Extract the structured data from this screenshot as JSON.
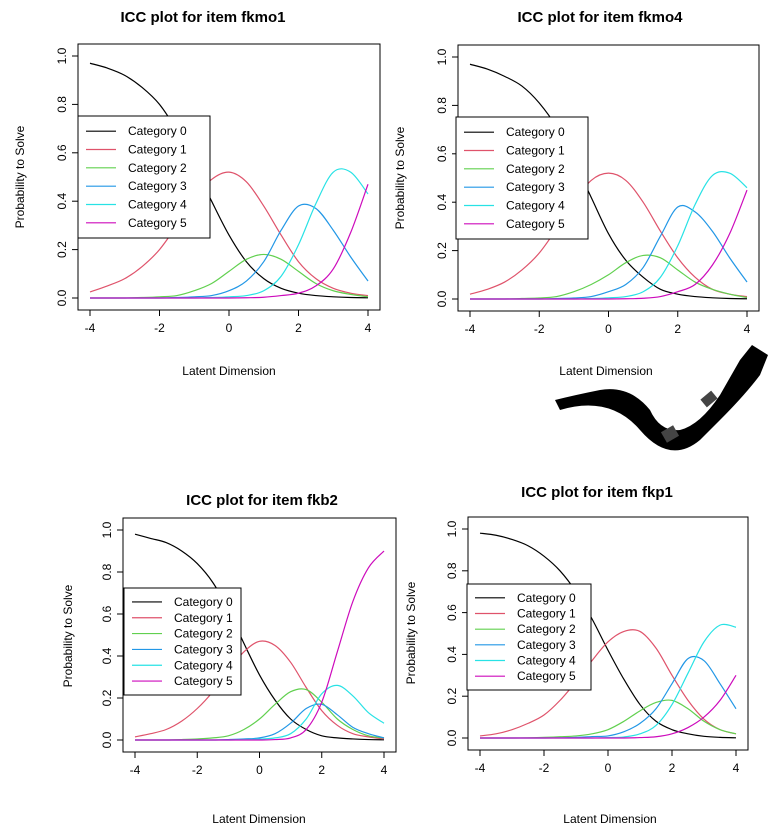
{
  "chart_data": [
    {
      "type": "line",
      "title": "ICC plot for item fkmo1",
      "xlabel": "Latent Dimension",
      "ylabel": "Probability to Solve",
      "xlim": [
        -4,
        4
      ],
      "ylim": [
        0,
        1
      ],
      "xticks": [
        "-4",
        "-2",
        "0",
        "2",
        "4"
      ],
      "yticks": [
        "0.0",
        "0.2",
        "0.4",
        "0.6",
        "0.8",
        "1.0"
      ],
      "legend_position": "left",
      "x": [
        -4,
        -3.5,
        -3,
        -2.5,
        -2,
        -1.5,
        -1,
        -0.5,
        0,
        0.5,
        1,
        1.5,
        2,
        2.5,
        3,
        3.5,
        4
      ],
      "series": [
        {
          "name": "Category 0",
          "color": "#000000",
          "values": [
            0.97,
            0.95,
            0.92,
            0.87,
            0.8,
            0.69,
            0.55,
            0.4,
            0.26,
            0.15,
            0.08,
            0.04,
            0.02,
            0.01,
            0.005,
            0.002,
            0.001
          ]
        },
        {
          "name": "Category 1",
          "color": "#DF536B",
          "values": [
            0.025,
            0.05,
            0.08,
            0.13,
            0.2,
            0.3,
            0.41,
            0.49,
            0.52,
            0.48,
            0.38,
            0.26,
            0.15,
            0.08,
            0.04,
            0.02,
            0.01
          ]
        },
        {
          "name": "Category 2",
          "color": "#61D04F",
          "values": [
            0.0,
            0.0,
            0.0,
            0.002,
            0.005,
            0.01,
            0.03,
            0.06,
            0.11,
            0.16,
            0.18,
            0.16,
            0.11,
            0.06,
            0.03,
            0.015,
            0.005
          ]
        },
        {
          "name": "Category 3",
          "color": "#2297E6",
          "values": [
            0.0,
            0.0,
            0.0,
            0.0,
            0.0,
            0.002,
            0.005,
            0.01,
            0.03,
            0.07,
            0.15,
            0.28,
            0.38,
            0.37,
            0.28,
            0.17,
            0.07
          ]
        },
        {
          "name": "Category 4",
          "color": "#28E2E5",
          "values": [
            0.0,
            0.0,
            0.0,
            0.0,
            0.0,
            0.0,
            0.0,
            0.002,
            0.005,
            0.01,
            0.03,
            0.09,
            0.22,
            0.39,
            0.52,
            0.52,
            0.43
          ]
        },
        {
          "name": "Category 5",
          "color": "#CD0BBC",
          "values": [
            0.0,
            0.0,
            0.0,
            0.0,
            0.0,
            0.0,
            0.0,
            0.0,
            0.0,
            0.001,
            0.003,
            0.01,
            0.02,
            0.05,
            0.12,
            0.27,
            0.47
          ]
        }
      ]
    },
    {
      "type": "line",
      "title": "ICC plot for item fkmo4",
      "xlabel": "Latent Dimension",
      "ylabel": "Probability to Solve",
      "xlim": [
        -4,
        4
      ],
      "ylim": [
        0,
        1
      ],
      "xticks": [
        "-4",
        "-2",
        "0",
        "2",
        "4"
      ],
      "yticks": [
        "0.0",
        "0.2",
        "0.4",
        "0.6",
        "0.8",
        "1.0"
      ],
      "legend_position": "left",
      "x": [
        -4,
        -3.5,
        -3,
        -2.5,
        -2,
        -1.5,
        -1,
        -0.5,
        0,
        0.5,
        1,
        1.5,
        2,
        2.5,
        3,
        3.5,
        4
      ],
      "series": [
        {
          "name": "Category 0",
          "color": "#000000",
          "values": [
            0.97,
            0.95,
            0.92,
            0.88,
            0.81,
            0.71,
            0.57,
            0.42,
            0.27,
            0.16,
            0.09,
            0.04,
            0.02,
            0.01,
            0.005,
            0.002,
            0.001
          ]
        },
        {
          "name": "Category 1",
          "color": "#DF536B",
          "values": [
            0.02,
            0.04,
            0.07,
            0.12,
            0.19,
            0.29,
            0.4,
            0.49,
            0.52,
            0.49,
            0.4,
            0.28,
            0.17,
            0.09,
            0.04,
            0.02,
            0.01
          ]
        },
        {
          "name": "Category 2",
          "color": "#61D04F",
          "values": [
            0.0,
            0.0,
            0.0,
            0.002,
            0.004,
            0.01,
            0.03,
            0.06,
            0.1,
            0.15,
            0.18,
            0.17,
            0.12,
            0.07,
            0.04,
            0.02,
            0.006
          ]
        },
        {
          "name": "Category 3",
          "color": "#2297E6",
          "values": [
            0.0,
            0.0,
            0.0,
            0.0,
            0.0,
            0.002,
            0.004,
            0.01,
            0.03,
            0.06,
            0.13,
            0.26,
            0.38,
            0.36,
            0.28,
            0.17,
            0.07
          ]
        },
        {
          "name": "Category 4",
          "color": "#28E2E5",
          "values": [
            0.0,
            0.0,
            0.0,
            0.0,
            0.0,
            0.0,
            0.0,
            0.002,
            0.005,
            0.01,
            0.03,
            0.09,
            0.22,
            0.39,
            0.51,
            0.52,
            0.46
          ]
        },
        {
          "name": "Category 5",
          "color": "#CD0BBC",
          "values": [
            0.0,
            0.0,
            0.0,
            0.0,
            0.0,
            0.0,
            0.0,
            0.0,
            0.0,
            0.001,
            0.003,
            0.01,
            0.03,
            0.06,
            0.14,
            0.27,
            0.45
          ]
        }
      ]
    },
    {
      "type": "line",
      "title": "ICC plot for item fkb2",
      "xlabel": "Latent Dimension",
      "ylabel": "Probability to Solve",
      "xlim": [
        -4,
        4
      ],
      "ylim": [
        0,
        1
      ],
      "xticks": [
        "-4",
        "-2",
        "0",
        "2",
        "4"
      ],
      "yticks": [
        "0.0",
        "0.2",
        "0.4",
        "0.6",
        "0.8",
        "1.0"
      ],
      "legend_position": "left",
      "x": [
        -4,
        -3.5,
        -3,
        -2.5,
        -2,
        -1.5,
        -1,
        -0.5,
        0,
        0.5,
        1,
        1.5,
        2,
        2.5,
        3,
        3.5,
        4
      ],
      "series": [
        {
          "name": "Category 0",
          "color": "#000000",
          "values": [
            0.98,
            0.96,
            0.94,
            0.9,
            0.84,
            0.75,
            0.62,
            0.46,
            0.31,
            0.19,
            0.1,
            0.05,
            0.02,
            0.01,
            0.005,
            0.002,
            0.001
          ]
        },
        {
          "name": "Category 1",
          "color": "#DF536B",
          "values": [
            0.015,
            0.03,
            0.05,
            0.09,
            0.15,
            0.23,
            0.33,
            0.42,
            0.47,
            0.45,
            0.37,
            0.25,
            0.14,
            0.07,
            0.03,
            0.015,
            0.005
          ]
        },
        {
          "name": "Category 2",
          "color": "#61D04F",
          "values": [
            0.0,
            0.0,
            0.0,
            0.002,
            0.005,
            0.01,
            0.02,
            0.05,
            0.1,
            0.17,
            0.23,
            0.24,
            0.18,
            0.1,
            0.05,
            0.02,
            0.01
          ]
        },
        {
          "name": "Category 3",
          "color": "#2297E6",
          "values": [
            0.0,
            0.0,
            0.0,
            0.0,
            0.0,
            0.0,
            0.002,
            0.005,
            0.01,
            0.03,
            0.08,
            0.15,
            0.17,
            0.12,
            0.06,
            0.03,
            0.01
          ]
        },
        {
          "name": "Category 4",
          "color": "#28E2E5",
          "values": [
            0.0,
            0.0,
            0.0,
            0.0,
            0.0,
            0.0,
            0.0,
            0.002,
            0.004,
            0.01,
            0.03,
            0.1,
            0.22,
            0.26,
            0.21,
            0.13,
            0.08
          ]
        },
        {
          "name": "Category 5",
          "color": "#CD0BBC",
          "values": [
            0.0,
            0.0,
            0.0,
            0.0,
            0.0,
            0.0,
            0.0,
            0.0,
            0.0,
            0.002,
            0.01,
            0.05,
            0.18,
            0.42,
            0.66,
            0.82,
            0.9
          ]
        }
      ]
    },
    {
      "type": "line",
      "title": "ICC plot for item fkp1",
      "xlabel": "Latent Dimension",
      "ylabel": "Probability to Solve",
      "xlim": [
        -4,
        4
      ],
      "ylim": [
        0,
        1
      ],
      "xticks": [
        "-4",
        "-2",
        "0",
        "2",
        "4"
      ],
      "yticks": [
        "0.0",
        "0.2",
        "0.4",
        "0.6",
        "0.8",
        "1.0"
      ],
      "legend_position": "left",
      "x": [
        -4,
        -3.5,
        -3,
        -2.5,
        -2,
        -1.5,
        -1,
        -0.5,
        0,
        0.5,
        1,
        1.5,
        2,
        2.5,
        3,
        3.5,
        4
      ],
      "series": [
        {
          "name": "Category 0",
          "color": "#000000",
          "values": [
            0.98,
            0.97,
            0.95,
            0.92,
            0.87,
            0.8,
            0.7,
            0.57,
            0.42,
            0.28,
            0.16,
            0.08,
            0.04,
            0.02,
            0.008,
            0.003,
            0.001
          ]
        },
        {
          "name": "Category 1",
          "color": "#DF536B",
          "values": [
            0.01,
            0.02,
            0.04,
            0.07,
            0.11,
            0.18,
            0.27,
            0.37,
            0.46,
            0.51,
            0.51,
            0.43,
            0.3,
            0.18,
            0.09,
            0.04,
            0.02
          ]
        },
        {
          "name": "Category 2",
          "color": "#61D04F",
          "values": [
            0.0,
            0.0,
            0.0,
            0.001,
            0.003,
            0.006,
            0.01,
            0.02,
            0.04,
            0.08,
            0.13,
            0.17,
            0.18,
            0.14,
            0.08,
            0.04,
            0.02
          ]
        },
        {
          "name": "Category 3",
          "color": "#2297E6",
          "values": [
            0.0,
            0.0,
            0.0,
            0.0,
            0.0,
            0.001,
            0.003,
            0.007,
            0.01,
            0.03,
            0.07,
            0.14,
            0.26,
            0.38,
            0.37,
            0.26,
            0.14
          ]
        },
        {
          "name": "Category 4",
          "color": "#28E2E5",
          "values": [
            0.0,
            0.0,
            0.0,
            0.0,
            0.0,
            0.0,
            0.0,
            0.0,
            0.002,
            0.005,
            0.02,
            0.06,
            0.16,
            0.31,
            0.46,
            0.54,
            0.53
          ]
        },
        {
          "name": "Category 5",
          "color": "#CD0BBC",
          "values": [
            0.0,
            0.0,
            0.0,
            0.0,
            0.0,
            0.0,
            0.0,
            0.0,
            0.0,
            0.0,
            0.002,
            0.006,
            0.02,
            0.05,
            0.1,
            0.18,
            0.3
          ]
        }
      ]
    }
  ]
}
